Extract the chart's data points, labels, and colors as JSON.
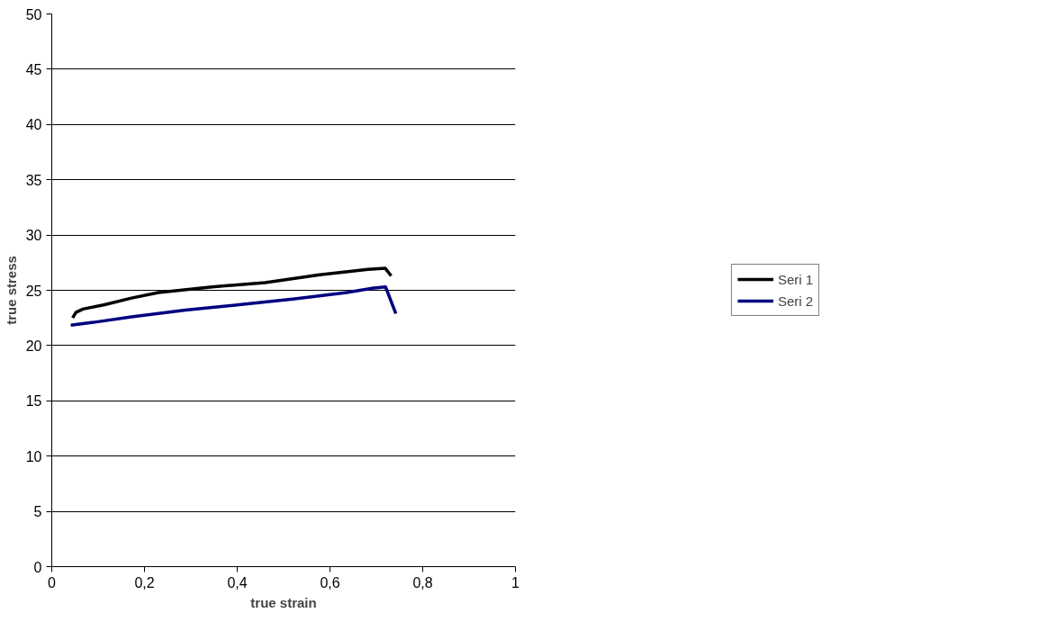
{
  "chart_data": {
    "type": "line",
    "xlabel": "true strain",
    "ylabel": "true stress",
    "xlim": [
      0,
      1
    ],
    "ylim": [
      0,
      50
    ],
    "xticks": [
      {
        "value": 0,
        "label": "0"
      },
      {
        "value": 0.2,
        "label": "0,2"
      },
      {
        "value": 0.4,
        "label": "0,4"
      },
      {
        "value": 0.6,
        "label": "0,6"
      },
      {
        "value": 0.8,
        "label": "0,8"
      },
      {
        "value": 1,
        "label": "1"
      }
    ],
    "yticks": [
      0,
      5,
      10,
      15,
      20,
      25,
      30,
      35,
      40,
      45,
      50
    ],
    "grid": "y",
    "legend": "right",
    "marker": "none",
    "line_style": "solid",
    "series": [
      {
        "name": "Seri 1",
        "color": "#000000",
        "x": [
          0.045,
          0.052,
          0.067,
          0.114,
          0.172,
          0.23,
          0.346,
          0.46,
          0.578,
          0.682,
          0.719,
          0.732
        ],
        "values": [
          22.5,
          23.0,
          23.3,
          23.7,
          24.3,
          24.8,
          25.3,
          25.7,
          26.4,
          26.9,
          27.0,
          26.3
        ]
      },
      {
        "name": "Seri 2",
        "color": "#000080",
        "x": [
          0.041,
          0.09,
          0.172,
          0.288,
          0.404,
          0.52,
          0.636,
          0.694,
          0.72,
          0.742
        ],
        "values": [
          21.85,
          22.1,
          22.6,
          23.2,
          23.7,
          24.2,
          24.8,
          25.2,
          25.3,
          22.9
        ]
      }
    ]
  }
}
